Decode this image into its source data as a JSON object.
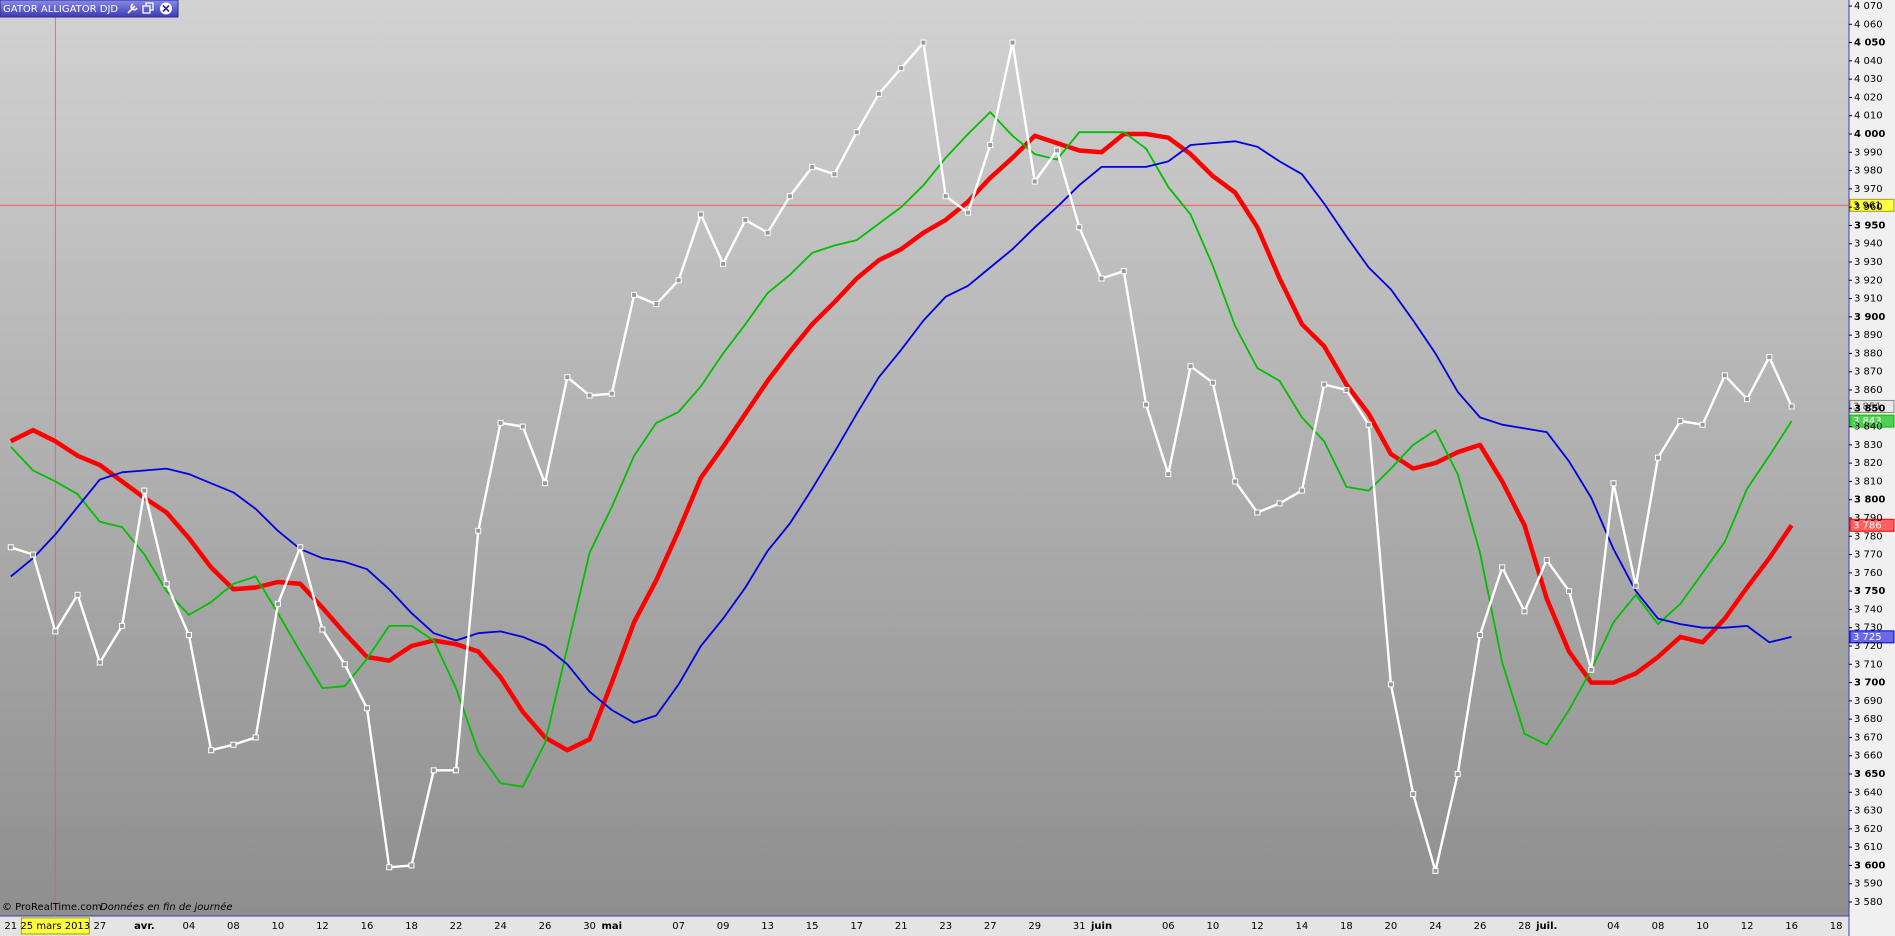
{
  "chart_data": {
    "type": "line",
    "title": "GATOR ALLIGATOR DJD",
    "footer": "© ProRealTime.com",
    "footer_note": "Données en fin de journée",
    "categories": [
      "21",
      null,
      "25 mars 2013",
      null,
      "27",
      null,
      "avr.",
      null,
      "04",
      null,
      "08",
      null,
      "10",
      null,
      "12",
      null,
      "16",
      null,
      "18",
      null,
      "22",
      null,
      "24",
      null,
      "26",
      null,
      "30",
      "mai",
      null,
      null,
      "07",
      null,
      "09",
      null,
      "13",
      null,
      "15",
      null,
      "17",
      null,
      "21",
      null,
      "23",
      null,
      "27",
      null,
      "29",
      null,
      "31",
      "juin",
      null,
      null,
      "06",
      null,
      "10",
      null,
      "12",
      null,
      "14",
      null,
      "18",
      null,
      "20",
      null,
      "24",
      null,
      "26",
      null,
      "28",
      "juil.",
      null,
      null,
      "04",
      null,
      "08",
      null,
      "10",
      null,
      "12",
      null,
      "16",
      null,
      "18"
    ],
    "cursor_category": 2,
    "cursor_value": 3961,
    "cursor_label": "3 961",
    "series": [
      {
        "color": "#ffffff",
        "markers": true,
        "last_label": "3 851",
        "values": [
          3774,
          3770,
          3728,
          3748,
          3711,
          3731,
          3805,
          3754,
          3726,
          3663,
          3666,
          3670,
          3743,
          3774,
          3729,
          3710,
          3686,
          3599,
          3600,
          3652,
          3652,
          3783,
          3842,
          3840,
          3809,
          3867,
          3857,
          3858,
          3912,
          3907,
          3920,
          3956,
          3929,
          3953,
          3946,
          3966,
          3982,
          3978,
          4001,
          4022,
          4036,
          4050,
          3966,
          3957,
          3994,
          4050,
          3974,
          3991,
          3949,
          3921,
          3925,
          3852,
          3814,
          3873,
          3864,
          3810,
          3793,
          3798,
          3805,
          3863,
          3860,
          3841,
          3699,
          3639,
          3597,
          3650,
          3726,
          3763,
          3739,
          3767,
          3750,
          3707,
          3809,
          3753,
          3823,
          3843,
          3841,
          3868,
          3855,
          3878,
          3851,
          null,
          null
        ]
      },
      {
        "color": "#ff0000",
        "last_label": "3 786",
        "values": [
          3832,
          3838,
          3832,
          3824,
          3819,
          3810,
          3801,
          3793,
          3779,
          3763,
          3751,
          3752,
          3755,
          3754,
          3741,
          3727,
          3714,
          3712,
          3720,
          3723,
          3721,
          3717,
          3703,
          3684,
          3670,
          3663,
          3669,
          3700,
          3733,
          3756,
          3783,
          3812,
          3829,
          3847,
          3865,
          3881,
          3896,
          3908,
          3921,
          3931,
          3937,
          3946,
          3953,
          3963,
          3976,
          3987,
          3999,
          3995,
          3991,
          3990,
          4000,
          4000,
          3998,
          3989,
          3977,
          3968,
          3949,
          3921,
          3896,
          3884,
          3863,
          3847,
          3825,
          3817,
          3820,
          3826,
          3830,
          3810,
          3786,
          3746,
          3717,
          3700,
          3700,
          3705,
          3714,
          3725,
          3722,
          3735,
          3752,
          3768,
          3786,
          null,
          null
        ]
      },
      {
        "color": "#00c000",
        "last_label": "3 843",
        "values": [
          3829,
          3816,
          3810,
          3803,
          3788,
          3785,
          3770,
          3750,
          3737,
          3744,
          3754,
          3758,
          3738,
          3717,
          3697,
          3698,
          3713,
          3731,
          3731,
          3723,
          3697,
          3662,
          3645,
          3643,
          3667,
          3719,
          3771,
          3796,
          3824,
          3842,
          3848,
          3862,
          3880,
          3896,
          3913,
          3923,
          3935,
          3939,
          3942,
          3951,
          3960,
          3972,
          3987,
          4000,
          4012,
          3999,
          3989,
          3986,
          4001,
          4001,
          4001,
          3992,
          3971,
          3956,
          3928,
          3895,
          3872,
          3865,
          3845,
          3832,
          3807,
          3805,
          3817,
          3830,
          3838,
          3814,
          3771,
          3711,
          3672,
          3666,
          3685,
          3707,
          3733,
          3748,
          3732,
          3743,
          3760,
          3777,
          3806,
          3824,
          3843,
          null,
          null
        ]
      },
      {
        "color": "#0000e0",
        "last_label": "3 725",
        "values": [
          3758,
          3768,
          3781,
          3796,
          3811,
          3815,
          3816,
          3817,
          3814,
          3809,
          3804,
          3795,
          3783,
          3773,
          3768,
          3766,
          3762,
          3751,
          3738,
          3727,
          3723,
          3727,
          3728,
          3725,
          3720,
          3710,
          3695,
          3685,
          3678,
          3682,
          3699,
          3720,
          3735,
          3752,
          3772,
          3787,
          3806,
          3826,
          3847,
          3867,
          3882,
          3898,
          3911,
          3917,
          3927,
          3937,
          3949,
          3960,
          3972,
          3982,
          3982,
          3982,
          3985,
          3994,
          3995,
          3996,
          3993,
          3985,
          3978,
          3962,
          3944,
          3927,
          3915,
          3898,
          3880,
          3859,
          3845,
          3841,
          3839,
          3837,
          3821,
          3801,
          3773,
          3750,
          3735,
          3732,
          3730,
          3730,
          3731,
          3722,
          3725,
          null,
          null
        ]
      }
    ],
    "ylim": [
      3575,
      4075
    ],
    "yticks": [
      {
        "value": 3580,
        "label": "3 580"
      },
      {
        "value": 3590,
        "label": "3 590"
      },
      {
        "value": 3600,
        "label": "3 600"
      },
      {
        "value": 3610,
        "label": "3 610"
      },
      {
        "value": 3620,
        "label": "3 620"
      },
      {
        "value": 3630,
        "label": "3 630"
      },
      {
        "value": 3640,
        "label": "3 640"
      },
      {
        "value": 3650,
        "label": "3 650"
      },
      {
        "value": 3660,
        "label": "3 660"
      },
      {
        "value": 3670,
        "label": "3 670"
      },
      {
        "value": 3680,
        "label": "3 680"
      },
      {
        "value": 3690,
        "label": "3 690"
      },
      {
        "value": 3700,
        "label": "3 700"
      },
      {
        "value": 3710,
        "label": "3 710"
      },
      {
        "value": 3720,
        "label": "3 720"
      },
      {
        "value": 3730,
        "label": "3 730"
      },
      {
        "value": 3740,
        "label": "3 740"
      },
      {
        "value": 3750,
        "label": "3 750"
      },
      {
        "value": 3760,
        "label": "3 760"
      },
      {
        "value": 3770,
        "label": "3 770"
      },
      {
        "value": 3780,
        "label": "3 780"
      },
      {
        "value": 3790,
        "label": "3 790"
      },
      {
        "value": 3800,
        "label": "3 800"
      },
      {
        "value": 3810,
        "label": "3 810"
      },
      {
        "value": 3820,
        "label": "3 820"
      },
      {
        "value": 3830,
        "label": "3 830"
      },
      {
        "value": 3840,
        "label": "3 840"
      },
      {
        "value": 3850,
        "label": "3 850"
      },
      {
        "value": 3860,
        "label": "3 860"
      },
      {
        "value": 3870,
        "label": "3 870"
      },
      {
        "value": 3880,
        "label": "3 880"
      },
      {
        "value": 3890,
        "label": "3 890"
      },
      {
        "value": 3900,
        "label": "3 900"
      },
      {
        "value": 3910,
        "label": "3 910"
      },
      {
        "value": 3920,
        "label": "3 920"
      },
      {
        "value": 3930,
        "label": "3 930"
      },
      {
        "value": 3940,
        "label": "3 940"
      },
      {
        "value": 3950,
        "label": "3 950"
      },
      {
        "value": 3960,
        "label": "3 960"
      },
      {
        "value": 3970,
        "label": "3 970"
      },
      {
        "value": 3980,
        "label": "3 980"
      },
      {
        "value": 3990,
        "label": "3 990"
      },
      {
        "value": 4000,
        "label": "4 000"
      },
      {
        "value": 4010,
        "label": "4 010"
      },
      {
        "value": 4020,
        "label": "4 020"
      },
      {
        "value": 4030,
        "label": "4 030"
      },
      {
        "value": 4040,
        "label": "4 040"
      },
      {
        "value": 4050,
        "label": "4 050"
      },
      {
        "value": 4060,
        "label": "4 060"
      },
      {
        "value": 4070,
        "label": "4 070"
      }
    ],
    "grid": false
  }
}
